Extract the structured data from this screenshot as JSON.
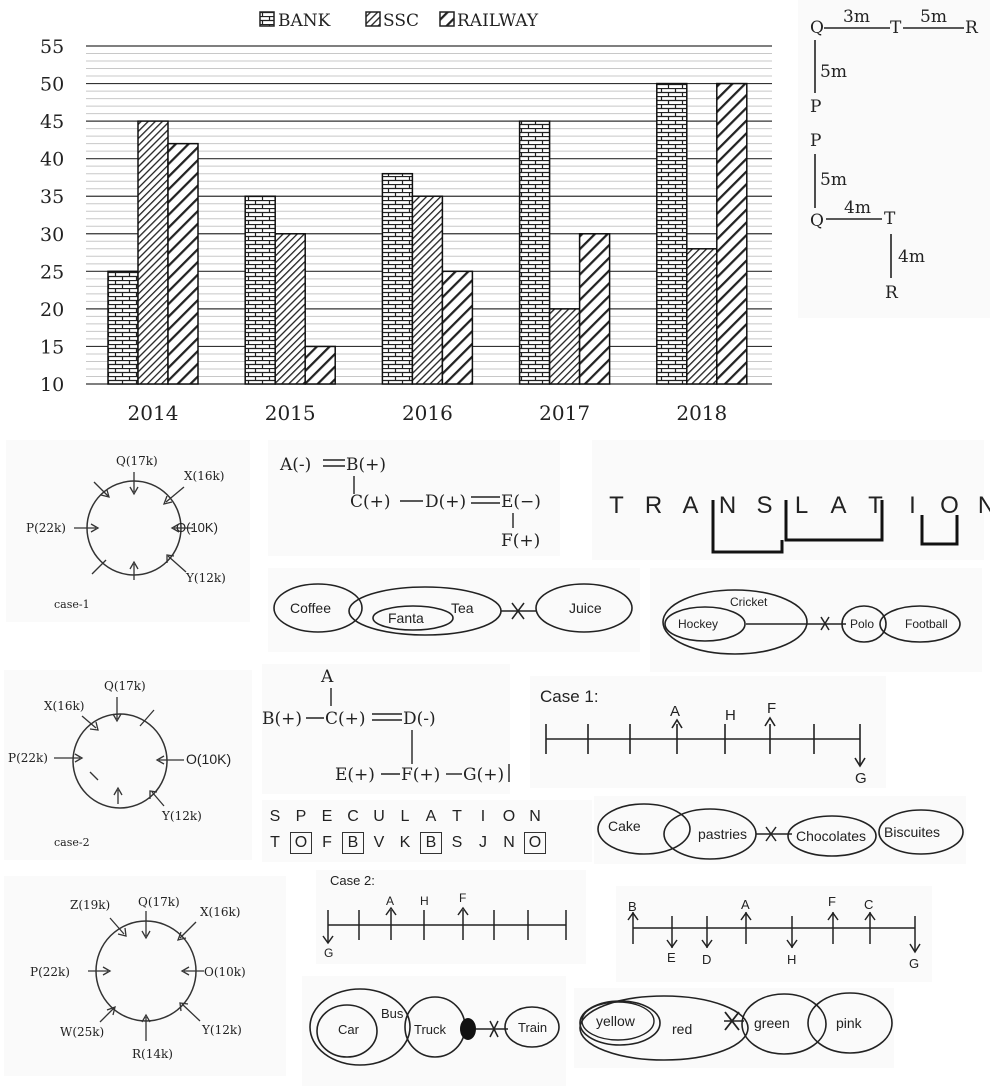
{
  "chart_data": {
    "type": "bar",
    "categories": [
      "2014",
      "2015",
      "2016",
      "2017",
      "2018"
    ],
    "series": [
      {
        "name": "BANK",
        "values": [
          25,
          35,
          38,
          45,
          50
        ]
      },
      {
        "name": "SSC",
        "values": [
          45,
          30,
          35,
          20,
          28
        ]
      },
      {
        "name": "RAILWAY",
        "values": [
          42,
          15,
          25,
          30,
          50
        ]
      }
    ],
    "ylim": [
      10,
      55
    ],
    "yticks": [
      "10",
      "15",
      "20",
      "25",
      "30",
      "35",
      "40",
      "45",
      "50",
      "55"
    ],
    "grid": true,
    "legend_position": "top"
  },
  "legend": {
    "bank": "BANK",
    "ssc": "SSC",
    "railway": "RAILWAY"
  },
  "direction1": {
    "q": "Q",
    "t": "T",
    "r": "R",
    "p": "P",
    "qt": "3m",
    "tr": "5m",
    "qp": "5m"
  },
  "direction2": {
    "p": "P",
    "q": "Q",
    "t": "T",
    "r": "R",
    "pq": "5m",
    "qt": "4m",
    "tr": "4m"
  },
  "circle1": {
    "case": "case-1",
    "q": "Q(17k)",
    "x": "X(16k)",
    "p": "P(22k)",
    "o": "O(10K)",
    "y": "Y(12k)"
  },
  "circle2": {
    "case": "case-2",
    "q": "Q(17k)",
    "x": "X(16k)",
    "p": "P(22k)",
    "o": "O(10K)",
    "y": "Y(12k)"
  },
  "circle3": {
    "z": "Z(19k)",
    "q": "Q(17k)",
    "x": "X(16k)",
    "p": "P(22k)",
    "o": "O(10k)",
    "w": "W(25k)",
    "r": "R(14k)",
    "y": "Y(12k)"
  },
  "family1": {
    "a": "A(-)",
    "b": "B(+)",
    "c": "C(+)",
    "d": "D(+)",
    "e": "E(−)",
    "f": "F(+)"
  },
  "family2": {
    "a": "A",
    "b": "B(+)",
    "c": "C(+)",
    "d": "D(-)",
    "e": "E(+)",
    "f": "F(+)",
    "g": "G(+)"
  },
  "translation": {
    "letters": [
      "T",
      "R",
      "A",
      "N",
      "S",
      "L",
      "A",
      "T",
      "I",
      "O",
      "N"
    ]
  },
  "speculation": {
    "top": [
      "S",
      "P",
      "E",
      "C",
      "U",
      "L",
      "A",
      "T",
      "I",
      "O",
      "N"
    ],
    "bottom": [
      "T",
      "O",
      "F",
      "B",
      "V",
      "K",
      "B",
      "S",
      "J",
      "N",
      "O"
    ]
  },
  "venn1": {
    "coffee": "Coffee",
    "fanta": "Fanta",
    "tea": "Tea",
    "juice": "Juice"
  },
  "venn2": {
    "cricket": "Cricket",
    "hockey": "Hockey",
    "polo": "Polo",
    "football": "Football"
  },
  "venn3": {
    "cake": "Cake",
    "pastries": "pastries",
    "chocolates": "Chocolates",
    "biscuites": "Biscuites"
  },
  "venn4": {
    "car": "Car",
    "bus": "Bus",
    "truck": "Truck",
    "train": "Train"
  },
  "venn5": {
    "yellow": "yellow",
    "red": "red",
    "green": "green",
    "pink": "pink"
  },
  "line1": {
    "title": "Case 1:",
    "a": "A",
    "h": "H",
    "f": "F",
    "g": "G"
  },
  "line2": {
    "title": "Case 2:",
    "a": "A",
    "h": "H",
    "f": "F",
    "g": "G"
  },
  "line3": {
    "b": "B",
    "e": "E",
    "d": "D",
    "a": "A",
    "h": "H",
    "f": "F",
    "c": "C",
    "g": "G"
  }
}
